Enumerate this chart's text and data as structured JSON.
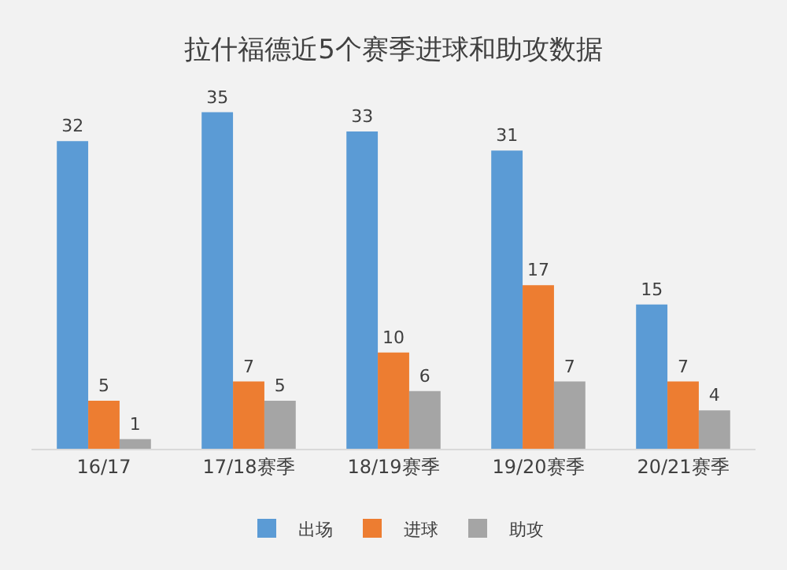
{
  "chart_data": {
    "type": "bar",
    "title": "拉什福德近5个赛季进球和助攻数据",
    "categories": [
      "16/17",
      "17/18赛季",
      "18/19赛季",
      "19/20赛季",
      "20/21赛季"
    ],
    "series": [
      {
        "name": "出场",
        "color": "#5b9bd5",
        "values": [
          32,
          35,
          33,
          31,
          15
        ]
      },
      {
        "name": "进球",
        "color": "#ed7d31",
        "values": [
          5,
          7,
          10,
          17,
          7
        ]
      },
      {
        "name": "助攻",
        "color": "#a5a5a5",
        "values": [
          1,
          5,
          6,
          7,
          4
        ]
      }
    ],
    "data_labels": true,
    "legend": "bottom"
  }
}
